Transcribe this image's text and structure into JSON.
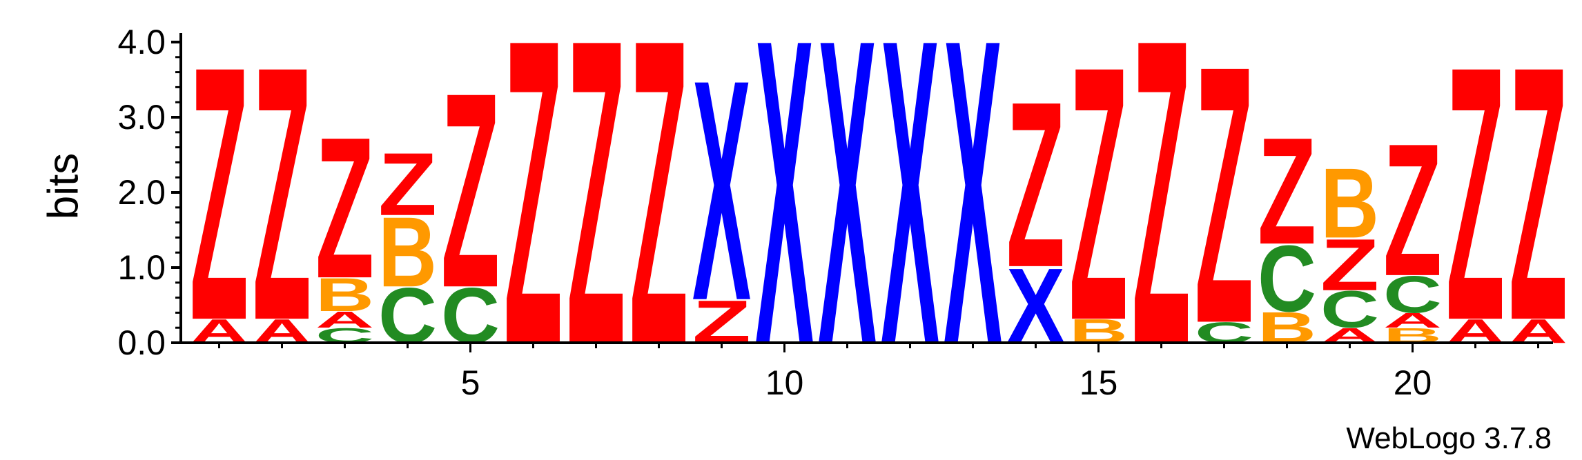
{
  "chart_data": {
    "type": "sequence-logo",
    "ylabel": "bits",
    "ylim": [
      0,
      4.0
    ],
    "y_ticks": [
      "0.0",
      "1.0",
      "2.0",
      "3.0",
      "4.0"
    ],
    "x_ticks": [
      "5",
      "10",
      "15",
      "20"
    ],
    "x_tick_positions": [
      5,
      10,
      15,
      20
    ],
    "footer": "WebLogo 3.7.8",
    "colors": {
      "Z": "#ff0000",
      "A": "#ff0000",
      "X": "#0000ff",
      "B": "#ff9900",
      "C": "#228b22"
    },
    "positions": [
      {
        "pos": 1,
        "stack": [
          [
            "A",
            0.32
          ],
          [
            "Z",
            3.45
          ]
        ]
      },
      {
        "pos": 2,
        "stack": [
          [
            "A",
            0.32
          ],
          [
            "Z",
            3.45
          ]
        ]
      },
      {
        "pos": 3,
        "stack": [
          [
            "C",
            0.2
          ],
          [
            "A",
            0.22
          ],
          [
            "B",
            0.45
          ],
          [
            "Z",
            1.92
          ]
        ]
      },
      {
        "pos": 4,
        "stack": [
          [
            "C",
            0.75
          ],
          [
            "B",
            0.95
          ],
          [
            "Z",
            0.85
          ]
        ]
      },
      {
        "pos": 5,
        "stack": [
          [
            "C",
            0.75
          ],
          [
            "Z",
            2.65
          ]
        ]
      },
      {
        "pos": 6,
        "stack": [
          [
            "Z",
            4.15
          ]
        ]
      },
      {
        "pos": 7,
        "stack": [
          [
            "Z",
            4.15
          ]
        ]
      },
      {
        "pos": 8,
        "stack": [
          [
            "Z",
            4.15
          ]
        ]
      },
      {
        "pos": 9,
        "stack": [
          [
            "Z",
            0.58
          ],
          [
            "X",
            3.0
          ]
        ]
      },
      {
        "pos": 10,
        "stack": [
          [
            "X",
            4.15
          ]
        ]
      },
      {
        "pos": 11,
        "stack": [
          [
            "X",
            4.15
          ]
        ]
      },
      {
        "pos": 12,
        "stack": [
          [
            "X",
            4.15
          ]
        ]
      },
      {
        "pos": 13,
        "stack": [
          [
            "X",
            4.15
          ]
        ]
      },
      {
        "pos": 14,
        "stack": [
          [
            "X",
            1.02
          ],
          [
            "Z",
            2.25
          ]
        ]
      },
      {
        "pos": 15,
        "stack": [
          [
            "B",
            0.32
          ],
          [
            "Z",
            3.45
          ]
        ]
      },
      {
        "pos": 16,
        "stack": [
          [
            "Z",
            4.15
          ]
        ]
      },
      {
        "pos": 17,
        "stack": [
          [
            "C",
            0.28
          ],
          [
            "Z",
            3.5
          ]
        ]
      },
      {
        "pos": 18,
        "stack": [
          [
            "B",
            0.42
          ],
          [
            "C",
            0.9
          ],
          [
            "Z",
            1.45
          ]
        ]
      },
      {
        "pos": 19,
        "stack": [
          [
            "A",
            0.2
          ],
          [
            "C",
            0.5
          ],
          [
            "Z",
            0.7
          ],
          [
            "B",
            0.95
          ]
        ]
      },
      {
        "pos": 20,
        "stack": [
          [
            "B",
            0.2
          ],
          [
            "A",
            0.2
          ],
          [
            "C",
            0.5
          ],
          [
            "Z",
            1.8
          ]
        ]
      },
      {
        "pos": 21,
        "stack": [
          [
            "A",
            0.32
          ],
          [
            "Z",
            3.45
          ]
        ]
      },
      {
        "pos": 22,
        "stack": [
          [
            "A",
            0.32
          ],
          [
            "Z",
            3.45
          ]
        ]
      }
    ]
  }
}
